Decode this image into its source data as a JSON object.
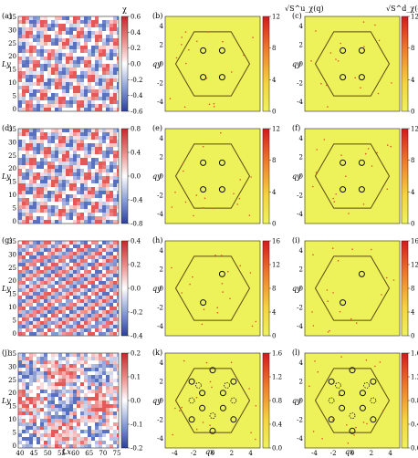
{
  "figure": {
    "colorbar_titles": {
      "chi": "χ",
      "s_u": "√S^u_χ(q)",
      "s_d": "√S^d_χ(q)"
    },
    "axis_labels": {
      "ly": "Ly",
      "lx": "Lx",
      "qx": "qx",
      "qy": "qy"
    },
    "colors": {
      "spectrum_bg": "#eef25a",
      "hexagon": "#5a4a10",
      "peak_outline": "#111111",
      "real_space_pos": "#e03b3b",
      "real_space_neg": "#3a57b5"
    },
    "ticks": {
      "real_x": [
        "40",
        "45",
        "50",
        "55",
        "60",
        "65",
        "70",
        "75"
      ],
      "real_y": [
        "0",
        "5",
        "10",
        "15",
        "20",
        "25",
        "30",
        "35"
      ],
      "q": [
        "-4",
        "-2",
        "0",
        "2",
        "4"
      ]
    },
    "rows": [
      {
        "panels": [
          {
            "label": "(a)",
            "kind": "real",
            "colorbar": [
              "0.6",
              "0.4",
              "0.2",
              "0.0",
              "-0.2",
              "-0.4",
              "-0.6"
            ]
          },
          {
            "label": "(b)",
            "kind": "spectrum",
            "colorbar": [
              "12",
              "8",
              "4",
              "0"
            ],
            "peaks": "four"
          },
          {
            "label": "(c)",
            "kind": "spectrum",
            "colorbar": [
              "12",
              "8",
              "4",
              "0"
            ],
            "peaks": "four"
          }
        ]
      },
      {
        "panels": [
          {
            "label": "(d)",
            "kind": "real",
            "colorbar": [
              "0.8",
              "0.4",
              "0.0",
              "-0.4",
              "-0.8"
            ]
          },
          {
            "label": "(e)",
            "kind": "spectrum",
            "colorbar": [
              "12",
              "8",
              "4",
              "0"
            ],
            "peaks": "four"
          },
          {
            "label": "(f)",
            "kind": "spectrum",
            "colorbar": [
              "12",
              "8",
              "4",
              "0"
            ],
            "peaks": "four"
          }
        ]
      },
      {
        "panels": [
          {
            "label": "(g)",
            "kind": "real",
            "colorbar": [
              "0.4",
              "0.2",
              "0.0",
              "-0.2",
              "-0.4"
            ]
          },
          {
            "label": "(h)",
            "kind": "spectrum",
            "colorbar": [
              "16",
              "12",
              "8",
              "4",
              "0"
            ],
            "peaks": "two"
          },
          {
            "label": "(i)",
            "kind": "spectrum",
            "colorbar": [
              "16",
              "12",
              "8",
              "4",
              "0"
            ],
            "peaks": "two"
          }
        ]
      },
      {
        "panels": [
          {
            "label": "(j)",
            "kind": "real",
            "colorbar": [
              "0.2",
              "0.1",
              "0.0",
              "-0.1",
              "-0.2"
            ]
          },
          {
            "label": "(k)",
            "kind": "spectrum",
            "colorbar": [
              "1.6",
              "1.2",
              "0.8",
              "0.4",
              "0.0"
            ],
            "peaks": "many"
          },
          {
            "label": "(l)",
            "kind": "spectrum",
            "colorbar": [
              "1.6",
              "1.2",
              "0.8",
              "0.4",
              "0.0"
            ],
            "peaks": "many"
          }
        ]
      }
    ]
  }
}
